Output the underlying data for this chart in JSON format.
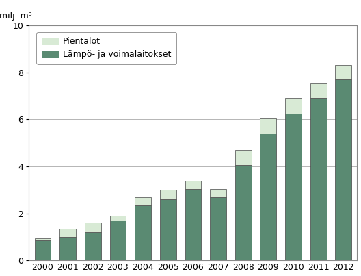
{
  "years": [
    2000,
    2001,
    2002,
    2003,
    2004,
    2005,
    2006,
    2007,
    2008,
    2009,
    2010,
    2011,
    2012
  ],
  "lampo_voimalaitokset": [
    0.85,
    1.0,
    1.2,
    1.7,
    2.35,
    2.6,
    3.05,
    2.7,
    4.05,
    5.4,
    6.25,
    6.9,
    7.7
  ],
  "pientalot": [
    0.1,
    0.35,
    0.4,
    0.2,
    0.35,
    0.4,
    0.35,
    0.35,
    0.65,
    0.65,
    0.65,
    0.65,
    0.6
  ],
  "color_lampo": "#5a8a72",
  "color_pientalot": "#d8ead5",
  "ylabel": "milj. m³",
  "ylim": [
    0,
    10
  ],
  "yticks": [
    0,
    2,
    4,
    6,
    8,
    10
  ],
  "legend_labels": [
    "Pientalot",
    "Lämpö- ja voimalaitokset"
  ],
  "bar_width": 0.65,
  "edgecolor": "#444444",
  "grid_color": "#aaaaaa",
  "tick_fontsize": 9,
  "legend_fontsize": 9,
  "ylabel_fontsize": 9,
  "fig_width": 5.28,
  "fig_height": 4.03,
  "fig_dpi": 100
}
